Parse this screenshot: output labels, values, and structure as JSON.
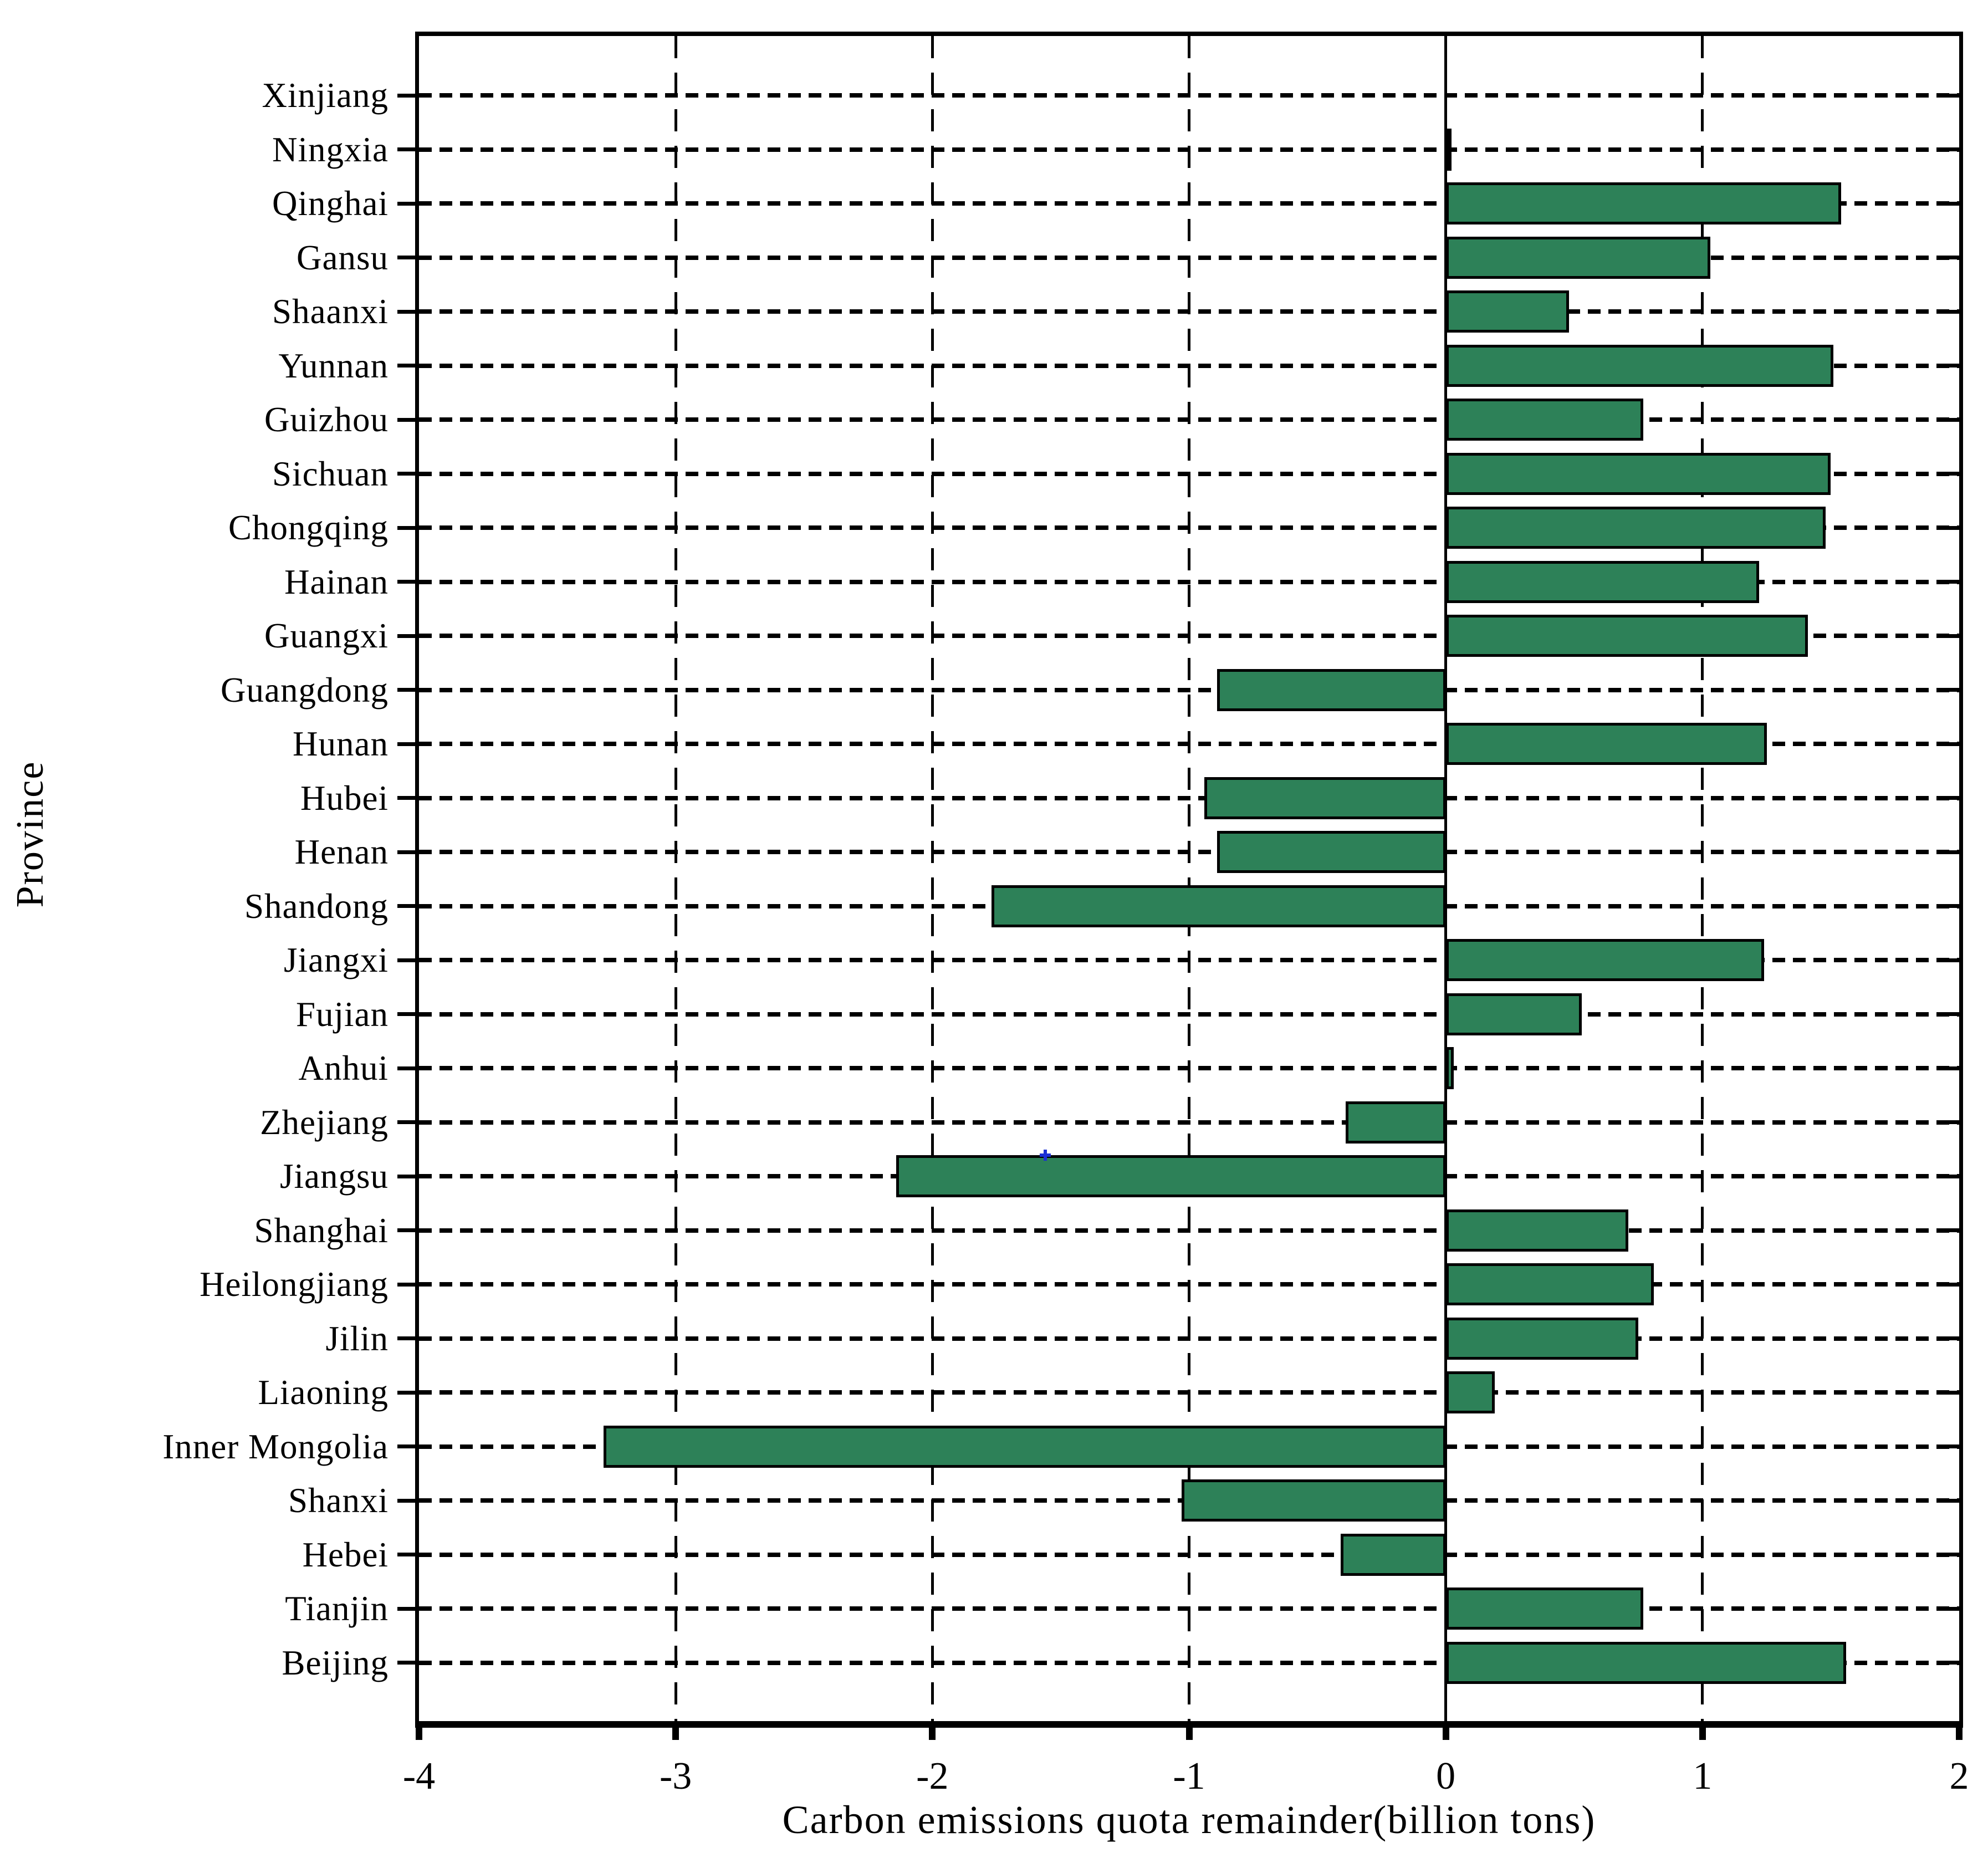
{
  "figure": {
    "background": "#ffffff",
    "axis_color": "#000000"
  },
  "chart_data": {
    "type": "bar",
    "orientation": "horizontal",
    "title": "",
    "xlabel": "Carbon emissions quota remainder(billion tons)",
    "ylabel": "Province",
    "xlim": [
      -4,
      2
    ],
    "x_ticks": [
      -4,
      -3,
      -2,
      -1,
      0,
      1,
      2
    ],
    "x_tick_labels": [
      "-4",
      "-3",
      "-2",
      "-1",
      "0",
      "1",
      "2"
    ],
    "grid": true,
    "grid_style": "dashed",
    "zero_line": "solid",
    "legend": "none",
    "bar_color": "#2d8158",
    "bar_edge_color": "#000000",
    "categories_top_to_bottom": [
      "Xinjiang",
      "Ningxia",
      "Qinghai",
      "Gansu",
      "Shaanxi",
      "Yunnan",
      "Guizhou",
      "Sichuan",
      "Chongqing",
      "Hainan",
      "Guangxi",
      "Guangdong",
      "Hunan",
      "Hubei",
      "Henan",
      "Shandong",
      "Jiangxi",
      "Fujian",
      "Anhui",
      "Zhejiang",
      "Jiangsu",
      "Shanghai",
      "Heilongjiang",
      "Jilin",
      "Liaoning",
      "Inner Mongolia",
      "Shanxi",
      "Hebei",
      "Tianjin",
      "Beijing"
    ],
    "values_top_to_bottom": [
      0.0,
      0.02,
      1.54,
      1.03,
      0.48,
      1.51,
      0.77,
      1.5,
      1.48,
      1.22,
      1.41,
      -0.89,
      1.25,
      -0.94,
      -0.89,
      -1.77,
      1.24,
      0.53,
      0.03,
      -0.39,
      -2.14,
      0.71,
      0.81,
      0.75,
      0.19,
      -3.28,
      -1.03,
      -0.41,
      0.77,
      1.56
    ],
    "annotation_marker": {
      "shape": "plus",
      "color": "#1a2fd4",
      "category": "Jiangsu",
      "x": -1.56,
      "position": "top-edge-of-bar"
    }
  }
}
